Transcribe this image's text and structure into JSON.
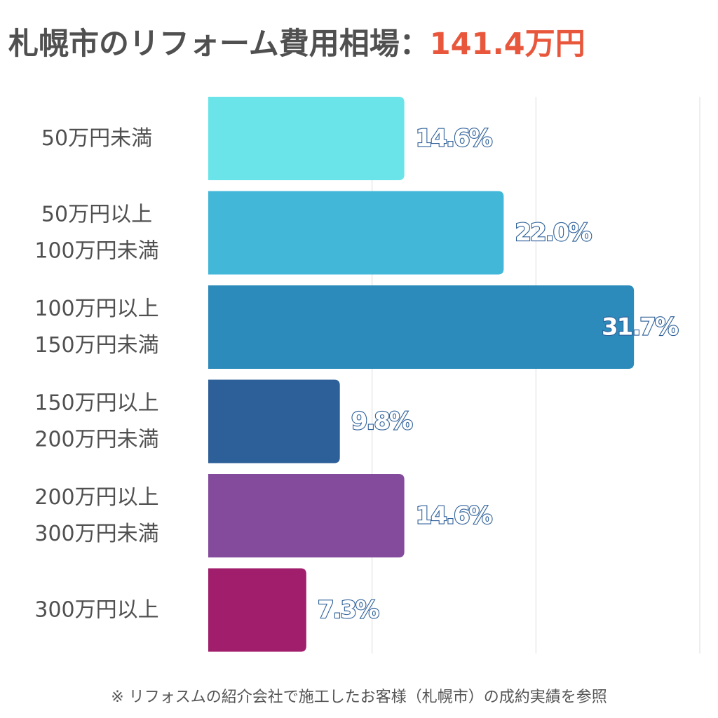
{
  "title": {
    "prefix": "札幌市のリフォーム費用相場：",
    "highlight": "141.4万円",
    "highlight_color": "#e8573c"
  },
  "footnote": "※ リフォスムの紹介会社で施工したお客様（札幌市）の成約実績を参照",
  "chart_data": {
    "type": "bar",
    "orientation": "horizontal",
    "title": "札幌市のリフォーム費用相場：141.4万円",
    "categories": [
      [
        "50万円未満"
      ],
      [
        "50万円以上",
        "100万円未満"
      ],
      [
        "100万円以上",
        "150万円未満"
      ],
      [
        "150万円以上",
        "200万円未満"
      ],
      [
        "200万円以上",
        "300万円未満"
      ],
      [
        "300万円以上"
      ]
    ],
    "values": [
      14.6,
      22.0,
      31.7,
      9.8,
      14.6,
      7.3
    ],
    "labels": [
      "14.6%",
      "22.0%",
      "31.7%",
      "9.8%",
      "14.6%",
      "7.3%"
    ],
    "colors": [
      "#6ae4e8",
      "#42b7d8",
      "#2c8bba",
      "#2d5f98",
      "#844a9b",
      "#a01e6b"
    ],
    "xlim": [
      0,
      36.6
    ],
    "grid": true,
    "label_fill": "#ffffff",
    "label_stroke": "#2d5f98"
  }
}
